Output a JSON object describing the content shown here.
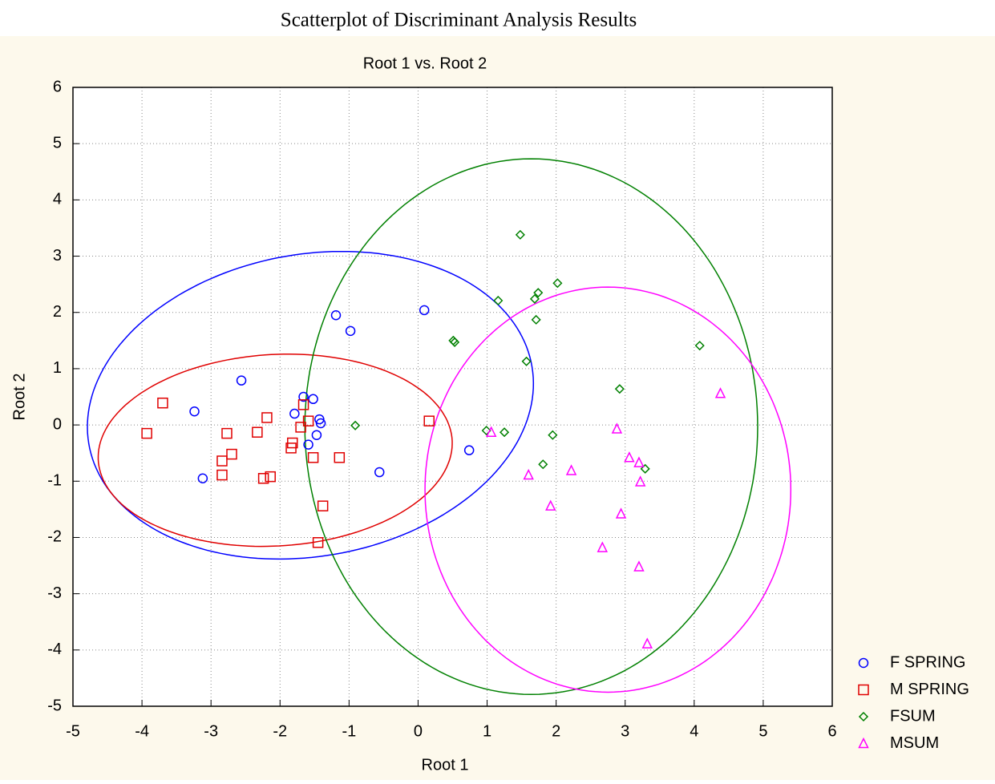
{
  "chart_data": {
    "type": "scatter",
    "title": "Scatterplot of Discriminant Analysis Results",
    "subtitle": "Root 1 vs. Root 2",
    "x_label": "Root 1",
    "y_label": "Root 2",
    "xlim": [
      -5,
      6
    ],
    "ylim": [
      -5,
      6
    ],
    "xticks": [
      -5,
      -4,
      -3,
      -2,
      -1,
      0,
      1,
      2,
      3,
      4,
      5,
      6
    ],
    "yticks": [
      -5,
      -4,
      -3,
      -2,
      -1,
      0,
      1,
      2,
      3,
      4,
      5,
      6
    ],
    "grid": true,
    "legend": "bottom-right",
    "series": [
      {
        "name": "F SPRING",
        "color": "#0000ff",
        "marker": "circle",
        "x": [
          -3.24,
          -3.12,
          -2.56,
          -1.19,
          -0.98,
          0.09,
          -1.66,
          -1.52,
          -1.79,
          -1.43,
          -1.41,
          -1.59,
          -1.47,
          -0.56,
          0.74
        ],
        "values": [
          0.24,
          -0.95,
          0.79,
          1.95,
          1.67,
          2.04,
          0.5,
          0.46,
          0.2,
          0.1,
          0.03,
          -0.35,
          -0.18,
          -0.84,
          -0.45
        ],
        "ellipse": {
          "cx": -1.56,
          "cy": 0.35,
          "a": 3.3,
          "b": 2.65,
          "angle": 20
        }
      },
      {
        "name": "M SPRING",
        "color": "#e00000",
        "marker": "square",
        "x": [
          -3.93,
          -3.7,
          -2.77,
          -2.7,
          -2.84,
          -2.84,
          -2.33,
          -2.19,
          -2.24,
          -2.14,
          -1.84,
          -1.82,
          -1.7,
          -1.66,
          -1.59,
          -1.52,
          -1.14,
          -1.38,
          -1.45,
          0.16
        ],
        "values": [
          -0.15,
          0.39,
          -0.15,
          -0.52,
          -0.64,
          -0.89,
          -0.13,
          0.13,
          -0.95,
          -0.92,
          -0.41,
          -0.32,
          -0.04,
          0.36,
          0.07,
          -0.58,
          -0.58,
          -1.44,
          -2.09,
          0.07
        ],
        "ellipse": {
          "cx": -2.07,
          "cy": -0.45,
          "a": 2.57,
          "b": 1.7,
          "angle": 5
        }
      },
      {
        "name": "FSUM",
        "color": "#008000",
        "marker": "diamond",
        "x": [
          -0.91,
          0.51,
          0.53,
          1.16,
          1.48,
          1.69,
          1.74,
          2.02,
          1.71,
          1.57,
          0.99,
          1.25,
          1.95,
          1.81,
          2.92,
          4.08,
          3.29
        ],
        "values": [
          -0.01,
          1.5,
          1.47,
          2.21,
          3.38,
          2.24,
          2.35,
          2.52,
          1.87,
          1.13,
          -0.1,
          -0.13,
          -0.18,
          -0.7,
          0.64,
          1.41,
          -0.78
        ],
        "ellipse": {
          "cx": 1.64,
          "cy": -0.03,
          "a": 3.28,
          "b": 4.76,
          "angle": 0
        }
      },
      {
        "name": "MSUM",
        "color": "#ff00ff",
        "marker": "triangle",
        "x": [
          1.06,
          1.6,
          1.92,
          2.22,
          2.67,
          2.88,
          2.94,
          3.06,
          3.2,
          3.22,
          3.2,
          3.32,
          4.38
        ],
        "values": [
          -0.13,
          -0.89,
          -1.44,
          -0.81,
          -2.18,
          -0.07,
          -1.58,
          -0.58,
          -0.67,
          -1.01,
          -2.52,
          -3.89,
          0.56
        ],
        "ellipse": {
          "cx": 2.75,
          "cy": -1.15,
          "a": 2.65,
          "b": 3.6,
          "angle": 0
        }
      }
    ]
  }
}
